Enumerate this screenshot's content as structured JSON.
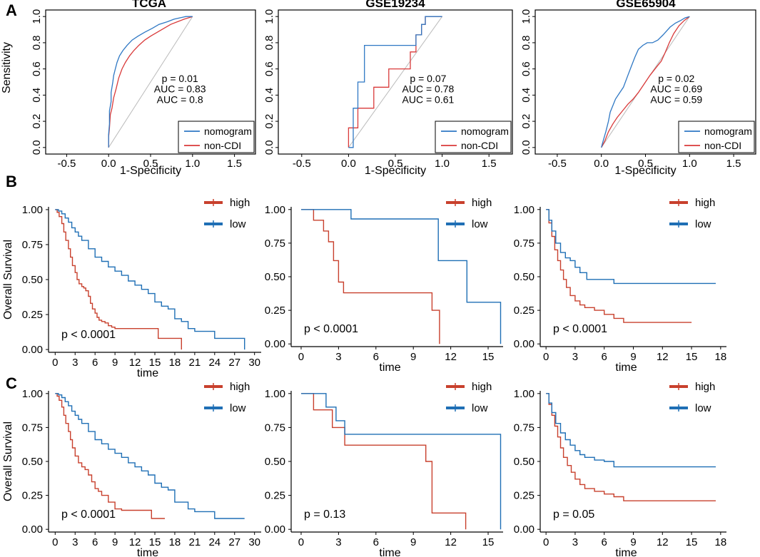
{
  "figure": {
    "panel_labels": [
      "A",
      "B",
      "C"
    ]
  },
  "colors": {
    "nomogram": "#2f78c4",
    "non_cdi": "#d93a3a",
    "high": "#c8402d",
    "low": "#1f6fb5",
    "p_text": "#1e7a3a",
    "diag": "#bbbbbb"
  },
  "chart_data": [
    {
      "id": "roc-tcga",
      "type": "line",
      "title": "TCGA",
      "xlabel": "1-Specificity",
      "ylabel": "Sensitivity",
      "xlim": [
        -0.75,
        1.75
      ],
      "ylim": [
        -0.05,
        1.05
      ],
      "xticks": [
        "-0.5",
        "0.0",
        "0.5",
        "1.0",
        "1.5"
      ],
      "yticks": [
        "0.0",
        "0.2",
        "0.4",
        "0.6",
        "0.8",
        "1.0"
      ],
      "annotations": [
        "p = 0.01",
        "AUC = 0.83",
        "AUC = 0.8"
      ],
      "legend": [
        "nomogram",
        "non-CDI"
      ],
      "series": [
        {
          "name": "nomogram",
          "x": [
            0,
            0,
            0.01,
            0.01,
            0.03,
            0.03,
            0.05,
            0.06,
            0.08,
            0.1,
            0.13,
            0.17,
            0.22,
            0.28,
            0.35,
            0.43,
            0.52,
            0.6,
            0.7,
            0.78,
            0.85,
            0.92,
            1.0
          ],
          "y": [
            0,
            0.1,
            0.18,
            0.28,
            0.35,
            0.42,
            0.5,
            0.55,
            0.6,
            0.65,
            0.7,
            0.74,
            0.78,
            0.82,
            0.85,
            0.88,
            0.91,
            0.94,
            0.96,
            0.98,
            0.99,
            1.0,
            1.0
          ]
        },
        {
          "name": "non-CDI",
          "x": [
            0,
            0,
            0.01,
            0.02,
            0.04,
            0.06,
            0.09,
            0.12,
            0.16,
            0.2,
            0.25,
            0.3,
            0.36,
            0.43,
            0.5,
            0.58,
            0.66,
            0.74,
            0.82,
            0.9,
            1.0
          ],
          "y": [
            0,
            0.08,
            0.15,
            0.25,
            0.3,
            0.38,
            0.45,
            0.53,
            0.6,
            0.65,
            0.7,
            0.74,
            0.78,
            0.82,
            0.85,
            0.88,
            0.91,
            0.94,
            0.96,
            0.98,
            1.0
          ]
        }
      ]
    },
    {
      "id": "roc-gse19234",
      "type": "line",
      "title": "GSE19234",
      "xlabel": "1-Specificity",
      "ylabel": "",
      "xlim": [
        -0.75,
        1.75
      ],
      "ylim": [
        -0.05,
        1.05
      ],
      "xticks": [
        "-0.5",
        "0.0",
        "0.5",
        "1.0",
        "1.5"
      ],
      "yticks": [
        "0.0",
        "0.2",
        "0.4",
        "0.6",
        "0.8",
        "1.0"
      ],
      "annotations": [
        "p = 0.07",
        "AUC = 0.78",
        "AUC = 0.61"
      ],
      "legend": [
        "nomogram",
        "non-CDI"
      ],
      "series": [
        {
          "name": "nomogram",
          "x": [
            0,
            0.05,
            0.05,
            0.1,
            0.1,
            0.17,
            0.17,
            0.72,
            0.72,
            0.78,
            0.78,
            0.82,
            0.82,
            1.0
          ],
          "y": [
            0,
            0,
            0.3,
            0.3,
            0.5,
            0.5,
            0.78,
            0.78,
            0.86,
            0.86,
            0.94,
            0.94,
            1.0,
            1.0
          ]
        },
        {
          "name": "non-CDI",
          "x": [
            0,
            0,
            0.1,
            0.1,
            0.27,
            0.27,
            0.43,
            0.43,
            0.66,
            0.66,
            0.72,
            0.72,
            0.78,
            0.78,
            0.82,
            0.82,
            1.0
          ],
          "y": [
            0,
            0.15,
            0.15,
            0.3,
            0.3,
            0.46,
            0.46,
            0.6,
            0.6,
            0.73,
            0.73,
            0.86,
            0.86,
            0.94,
            0.94,
            1.0,
            1.0
          ]
        }
      ]
    },
    {
      "id": "roc-gse65904",
      "type": "line",
      "title": "GSE65904",
      "xlabel": "1-Specificity",
      "ylabel": "",
      "xlim": [
        -0.75,
        1.75
      ],
      "ylim": [
        -0.05,
        1.05
      ],
      "xticks": [
        "-0.5",
        "0.0",
        "0.5",
        "1.0",
        "1.5"
      ],
      "yticks": [
        "0.0",
        "0.2",
        "0.4",
        "0.6",
        "0.8",
        "1.0"
      ],
      "annotations": [
        "p = 0.02",
        "AUC = 0.69",
        "AUC = 0.59"
      ],
      "legend": [
        "nomogram",
        "non-CDI"
      ],
      "series": [
        {
          "name": "nomogram",
          "x": [
            0,
            0.02,
            0.05,
            0.08,
            0.1,
            0.13,
            0.16,
            0.2,
            0.25,
            0.3,
            0.34,
            0.38,
            0.42,
            0.47,
            0.52,
            0.58,
            0.64,
            0.7,
            0.78,
            0.84,
            0.9,
            0.95,
            1.0
          ],
          "y": [
            0,
            0.05,
            0.12,
            0.2,
            0.27,
            0.32,
            0.37,
            0.41,
            0.46,
            0.55,
            0.62,
            0.69,
            0.75,
            0.78,
            0.8,
            0.8,
            0.82,
            0.86,
            0.92,
            0.95,
            0.97,
            0.99,
            1.0
          ]
        },
        {
          "name": "non-CDI",
          "x": [
            0,
            0.04,
            0.08,
            0.13,
            0.18,
            0.24,
            0.3,
            0.36,
            0.42,
            0.48,
            0.55,
            0.62,
            0.68,
            0.72,
            0.77,
            0.82,
            0.88,
            0.94,
            1.0
          ],
          "y": [
            0,
            0.05,
            0.12,
            0.18,
            0.23,
            0.28,
            0.33,
            0.37,
            0.42,
            0.48,
            0.55,
            0.61,
            0.66,
            0.72,
            0.8,
            0.87,
            0.93,
            0.97,
            1.0
          ]
        }
      ]
    },
    {
      "id": "km-b-tcga",
      "type": "line",
      "title": "",
      "xlabel": "time",
      "ylabel": "Overall Survival",
      "xlim": [
        -1,
        31
      ],
      "ylim": [
        -0.02,
        1.02
      ],
      "xticks": [
        0,
        3,
        6,
        9,
        12,
        15,
        18,
        21,
        24,
        27,
        30
      ],
      "yticks": [
        "0.00",
        "0.25",
        "0.50",
        "0.75",
        "1.00"
      ],
      "annotation": "p < 0.0001",
      "legend": [
        "high",
        "low"
      ],
      "series": [
        {
          "name": "high",
          "x": [
            0,
            0.3,
            0.6,
            1.0,
            1.3,
            1.6,
            2.0,
            2.3,
            2.6,
            3.0,
            3.3,
            3.6,
            4.0,
            4.3,
            4.6,
            5.0,
            5.3,
            5.6,
            6.0,
            6.3,
            6.6,
            7.0,
            7.5,
            8.0,
            8.5,
            9.0,
            12.0,
            15.5,
            19.0
          ],
          "y": [
            1.0,
            0.98,
            0.95,
            0.9,
            0.84,
            0.78,
            0.72,
            0.66,
            0.6,
            0.55,
            0.5,
            0.47,
            0.45,
            0.44,
            0.42,
            0.38,
            0.33,
            0.29,
            0.26,
            0.23,
            0.21,
            0.2,
            0.19,
            0.17,
            0.16,
            0.15,
            0.15,
            0.08,
            0.0
          ]
        },
        {
          "name": "low",
          "x": [
            0,
            0.5,
            1.0,
            1.5,
            2.0,
            2.5,
            3.0,
            3.5,
            4.0,
            5.0,
            6.0,
            7.0,
            8.0,
            9.0,
            10.0,
            11.0,
            12.0,
            13.0,
            14.0,
            15.0,
            16.0,
            17.0,
            18.0,
            19.0,
            20.0,
            21.0,
            24.0,
            27.0,
            28.5
          ],
          "y": [
            1.0,
            0.99,
            0.97,
            0.94,
            0.91,
            0.87,
            0.84,
            0.81,
            0.78,
            0.72,
            0.66,
            0.63,
            0.59,
            0.56,
            0.53,
            0.49,
            0.46,
            0.43,
            0.4,
            0.34,
            0.31,
            0.29,
            0.22,
            0.2,
            0.15,
            0.13,
            0.08,
            0.08,
            0.0
          ]
        }
      ]
    },
    {
      "id": "km-b-gse19234",
      "type": "line",
      "title": "",
      "xlabel": "time",
      "ylabel": "",
      "xlim": [
        -0.8,
        16.2
      ],
      "ylim": [
        -0.02,
        1.02
      ],
      "xticks": [
        0,
        3,
        6,
        9,
        12,
        15
      ],
      "yticks": [
        "0.00",
        "0.25",
        "0.50",
        "0.75",
        "1.00"
      ],
      "annotation": "p < 0.0001",
      "legend": [
        "high",
        "low"
      ],
      "series": [
        {
          "name": "high",
          "x": [
            0,
            1.0,
            1.8,
            2.2,
            2.6,
            3.0,
            3.4,
            10.5,
            11.1
          ],
          "y": [
            1.0,
            0.92,
            0.84,
            0.76,
            0.62,
            0.46,
            0.38,
            0.25,
            0.0
          ]
        },
        {
          "name": "low",
          "x": [
            0,
            4.0,
            11.0,
            13.3,
            16.0
          ],
          "y": [
            1.0,
            0.93,
            0.62,
            0.31,
            0.0
          ]
        }
      ]
    },
    {
      "id": "km-b-gse65904",
      "type": "line",
      "title": "",
      "xlabel": "time",
      "ylabel": "",
      "xlim": [
        -0.6,
        18.6
      ],
      "ylim": [
        -0.02,
        1.02
      ],
      "xticks": [
        0,
        3,
        6,
        9,
        12,
        15,
        18
      ],
      "yticks": [
        "0.00",
        "0.25",
        "0.50",
        "0.75",
        "1.00"
      ],
      "annotation": "p < 0.0001",
      "legend": [
        "high",
        "low"
      ],
      "series": [
        {
          "name": "high",
          "x": [
            0,
            0.3,
            0.6,
            0.9,
            1.2,
            1.5,
            1.8,
            2.1,
            2.5,
            3.0,
            3.5,
            4.0,
            5.0,
            6.0,
            7.0,
            8.0,
            15.0
          ],
          "y": [
            1.0,
            0.9,
            0.8,
            0.7,
            0.62,
            0.55,
            0.48,
            0.42,
            0.36,
            0.32,
            0.29,
            0.27,
            0.25,
            0.22,
            0.19,
            0.16,
            0.16
          ]
        },
        {
          "name": "low",
          "x": [
            0,
            0.3,
            0.6,
            1.0,
            1.5,
            2.0,
            2.5,
            3.0,
            3.5,
            4.2,
            7.0,
            17.5
          ],
          "y": [
            1.0,
            0.92,
            0.84,
            0.75,
            0.68,
            0.64,
            0.62,
            0.57,
            0.53,
            0.48,
            0.45,
            0.45
          ]
        }
      ]
    },
    {
      "id": "km-c-tcga",
      "type": "line",
      "title": "",
      "xlabel": "time",
      "ylabel": "Overall Survival",
      "xlim": [
        -1,
        31
      ],
      "ylim": [
        -0.02,
        1.02
      ],
      "xticks": [
        0,
        3,
        6,
        9,
        12,
        15,
        18,
        21,
        24,
        27,
        30
      ],
      "yticks": [
        "0.00",
        "0.25",
        "0.50",
        "0.75",
        "1.00"
      ],
      "annotation": "p < 0.0001",
      "legend": [
        "high",
        "low"
      ],
      "series": [
        {
          "name": "high",
          "x": [
            0,
            0.3,
            0.6,
            1.0,
            1.3,
            1.6,
            2.0,
            2.3,
            2.6,
            3.0,
            3.5,
            4.0,
            4.5,
            5.0,
            5.5,
            6.0,
            6.5,
            7.0,
            8.0,
            9.0,
            10.0,
            13.0,
            14.5,
            16.5
          ],
          "y": [
            1.0,
            0.98,
            0.95,
            0.9,
            0.84,
            0.78,
            0.72,
            0.66,
            0.6,
            0.54,
            0.49,
            0.46,
            0.44,
            0.4,
            0.35,
            0.3,
            0.28,
            0.25,
            0.2,
            0.15,
            0.14,
            0.14,
            0.08,
            0.08
          ]
        },
        {
          "name": "low",
          "x": [
            0,
            0.5,
            1.0,
            1.5,
            2.0,
            2.5,
            3.0,
            3.5,
            4.0,
            5.0,
            6.0,
            7.0,
            8.0,
            9.0,
            10.0,
            11.0,
            12.0,
            13.0,
            14.0,
            15.0,
            16.0,
            17.0,
            18.0,
            19.0,
            20.0,
            21.0,
            24.0,
            27.0,
            28.5
          ],
          "y": [
            1.0,
            0.99,
            0.97,
            0.94,
            0.91,
            0.87,
            0.84,
            0.81,
            0.78,
            0.72,
            0.66,
            0.63,
            0.59,
            0.56,
            0.53,
            0.49,
            0.46,
            0.43,
            0.4,
            0.34,
            0.31,
            0.29,
            0.2,
            0.2,
            0.15,
            0.13,
            0.08,
            0.08,
            0.08
          ]
        }
      ]
    },
    {
      "id": "km-c-gse19234",
      "type": "line",
      "title": "",
      "xlabel": "time",
      "ylabel": "",
      "xlim": [
        -0.8,
        16.2
      ],
      "ylim": [
        -0.02,
        1.02
      ],
      "xticks": [
        0,
        3,
        6,
        9,
        12,
        15
      ],
      "yticks": [
        "0.00",
        "0.25",
        "0.50",
        "0.75",
        "1.00"
      ],
      "annotation": "p = 0.13",
      "legend": [
        "high",
        "low"
      ],
      "series": [
        {
          "name": "high",
          "x": [
            0,
            1.0,
            2.5,
            3.5,
            10.0,
            10.5,
            11.2,
            13.2
          ],
          "y": [
            1.0,
            0.88,
            0.75,
            0.62,
            0.5,
            0.12,
            0.12,
            0.0
          ]
        },
        {
          "name": "low",
          "x": [
            0,
            2.0,
            2.8,
            3.5,
            15.8,
            16.0
          ],
          "y": [
            1.0,
            0.9,
            0.8,
            0.7,
            0.7,
            0.0
          ]
        }
      ]
    },
    {
      "id": "km-c-gse65904",
      "type": "line",
      "title": "",
      "xlabel": "time",
      "ylabel": "",
      "xlim": [
        -0.6,
        18.6
      ],
      "ylim": [
        -0.02,
        1.02
      ],
      "xticks": [
        0,
        3,
        6,
        9,
        12,
        15,
        18
      ],
      "yticks": [
        "0.00",
        "0.25",
        "0.50",
        "0.75",
        "1.00"
      ],
      "annotation": "p = 0.05",
      "legend": [
        "high",
        "low"
      ],
      "series": [
        {
          "name": "high",
          "x": [
            0,
            0.3,
            0.6,
            0.9,
            1.2,
            1.5,
            1.8,
            2.2,
            2.6,
            3.0,
            3.5,
            4.0,
            5.0,
            6.0,
            7.0,
            8.0,
            17.5
          ],
          "y": [
            1.0,
            0.92,
            0.84,
            0.76,
            0.68,
            0.6,
            0.53,
            0.47,
            0.42,
            0.37,
            0.33,
            0.3,
            0.28,
            0.26,
            0.24,
            0.21,
            0.21
          ]
        },
        {
          "name": "low",
          "x": [
            0,
            0.3,
            0.6,
            1.0,
            1.5,
            2.0,
            2.5,
            3.0,
            3.5,
            4.0,
            5.0,
            6.0,
            7.0,
            17.5
          ],
          "y": [
            1.0,
            0.93,
            0.86,
            0.78,
            0.71,
            0.66,
            0.62,
            0.58,
            0.55,
            0.53,
            0.51,
            0.5,
            0.46,
            0.46
          ]
        }
      ]
    }
  ]
}
